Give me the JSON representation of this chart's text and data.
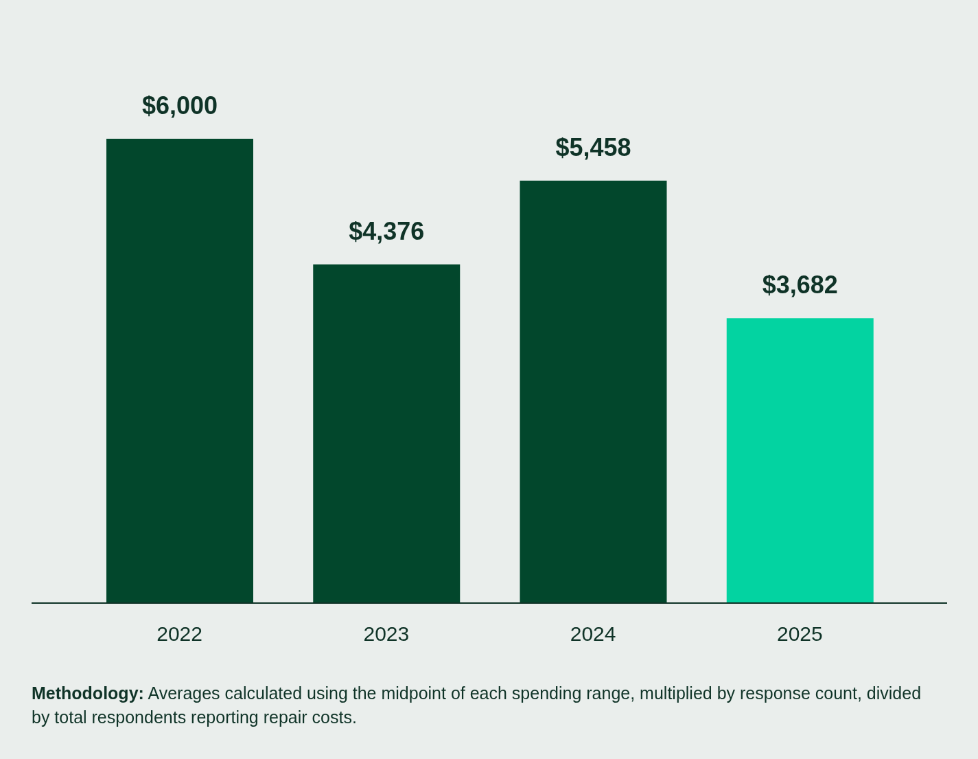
{
  "chart_data": {
    "type": "bar",
    "categories": [
      "2022",
      "2023",
      "2024",
      "2025"
    ],
    "values": [
      6000,
      4376,
      5458,
      3682
    ],
    "colors": [
      "#02472c",
      "#02472c",
      "#02472c",
      "#03d3a1"
    ],
    "value_labels": [
      "$6,000",
      "$4,376",
      "$5,458",
      "$3,682"
    ],
    "grid": false,
    "legend": false,
    "annotations": [
      "Methodology: Averages calculated using the midpoint of each spending range, multiplied by response count, divided by total respondents reporting repair costs."
    ]
  }
}
